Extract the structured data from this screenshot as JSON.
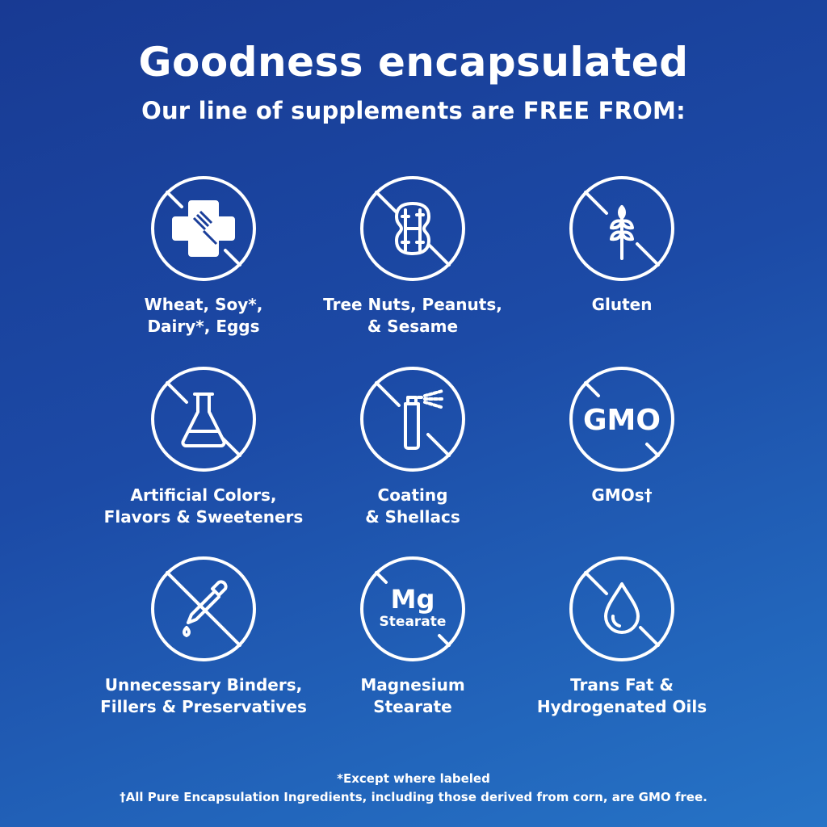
{
  "header": {
    "title": "Goodness encapsulated",
    "subtitle": "Our line of supplements are FREE FROM:"
  },
  "items": [
    {
      "label": "Wheat, Soy*,\nDairy*, Eggs",
      "icon": "allergen-cross-fork-icon"
    },
    {
      "label": "Tree Nuts, Peanuts,\n& Sesame",
      "icon": "peanut-icon"
    },
    {
      "label": "Gluten",
      "icon": "wheat-icon"
    },
    {
      "label": "Artificial Colors,\nFlavors & Sweeteners",
      "icon": "flask-icon"
    },
    {
      "label": "Coating\n& Shellacs",
      "icon": "spray-can-icon"
    },
    {
      "label": "GMOs†",
      "icon": "gmo-icon",
      "icon_text": "GMO"
    },
    {
      "label": "Unnecessary Binders,\nFillers & Preservatives",
      "icon": "dropper-icon"
    },
    {
      "label": "Magnesium\nStearate",
      "icon": "mg-stearate-icon",
      "icon_text": "Mg",
      "icon_subtext": "Stearate"
    },
    {
      "label": "Trans Fat &\nHydrogenated Oils",
      "icon": "oil-drop-icon"
    }
  ],
  "footnotes": [
    "*Except where labeled",
    "†All Pure Encapsulation Ingredients, including those derived from corn, are GMO free."
  ],
  "colors": {
    "background_start": "#183a93",
    "background_end": "#2673c6",
    "text": "#ffffff"
  }
}
